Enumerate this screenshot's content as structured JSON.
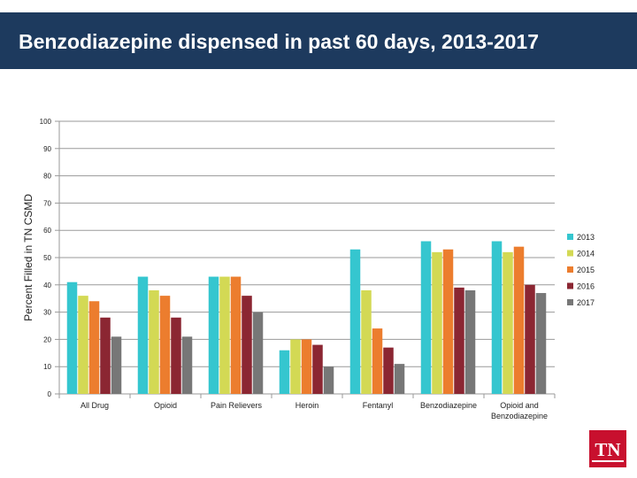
{
  "page": {
    "title": "Benzodiazepine dispensed in past 60 days, 2013-2017",
    "logo_text": "TN"
  },
  "colors": {
    "header_bg": "#1d3a5e",
    "logo_red": "#c8102e"
  },
  "chart_data": {
    "type": "bar",
    "title": "Benzodiazepine dispensed in past 60 days, 2013-2017",
    "xlabel": "",
    "ylabel": "Percent Filled in TN CSMD",
    "ylim": [
      0,
      100
    ],
    "yticks": [
      0,
      10,
      20,
      30,
      40,
      50,
      60,
      70,
      80,
      90,
      100
    ],
    "grid": true,
    "legend_position": "right",
    "categories": [
      [
        "All Drug"
      ],
      [
        "Opioid"
      ],
      [
        "Pain Relievers"
      ],
      [
        "Heroin"
      ],
      [
        "Fentanyl"
      ],
      [
        "Benzodiazepine"
      ],
      [
        "Opioid and",
        "Benzodiazepine"
      ]
    ],
    "series": [
      {
        "name": "2013",
        "color": "#35c6cf",
        "values": [
          41,
          43,
          43,
          16,
          53,
          56,
          56
        ]
      },
      {
        "name": "2014",
        "color": "#d3d954",
        "values": [
          36,
          38,
          43,
          20,
          38,
          52,
          52
        ]
      },
      {
        "name": "2015",
        "color": "#ec7d2e",
        "values": [
          34,
          36,
          43,
          20,
          24,
          53,
          54
        ]
      },
      {
        "name": "2016",
        "color": "#8b2632",
        "values": [
          28,
          28,
          36,
          18,
          17,
          39,
          40
        ]
      },
      {
        "name": "2017",
        "color": "#777777",
        "values": [
          21,
          21,
          30,
          10,
          11,
          38,
          37
        ]
      }
    ]
  }
}
